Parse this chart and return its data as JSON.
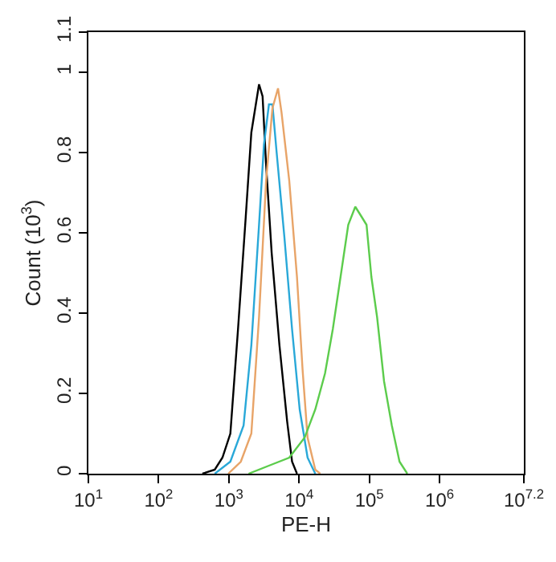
{
  "chart_data": {
    "type": "line",
    "xlabel": "PE-H",
    "ylabel": "Count (10$^{3}$)",
    "log": "x",
    "marker": "none",
    "line_style": "solid",
    "xlim": [
      10,
      15848932
    ],
    "ylim": [
      0,
      1.1
    ],
    "xticks": [
      {
        "value": 10,
        "label": "10$^{1}$"
      },
      {
        "value": 100,
        "label": "10$^{2}$"
      },
      {
        "value": 1000,
        "label": "10$^{3}$"
      },
      {
        "value": 10000,
        "label": "10$^{4}$"
      },
      {
        "value": 100000,
        "label": "10$^{5}$"
      },
      {
        "value": 1000000,
        "label": "10$^{6}$"
      },
      {
        "value": 15848932,
        "label": "10$^{7.2}$"
      }
    ],
    "yticks": [
      0,
      0.2,
      0.4,
      0.6,
      0.8,
      1,
      1.1
    ],
    "series": [
      {
        "color": "#000000",
        "x": [
          420,
          630,
          810,
          1050,
          1350,
          1740,
          2090,
          2690,
          3020,
          3390,
          4070,
          5250,
          6760,
          7940,
          9330
        ],
        "values": [
          0,
          0.01,
          0.04,
          0.1,
          0.36,
          0.64,
          0.85,
          0.97,
          0.94,
          0.77,
          0.55,
          0.32,
          0.13,
          0.03,
          0
        ]
      },
      {
        "color": "#29a8d8",
        "x": [
          630,
          1050,
          1620,
          2090,
          2690,
          3160,
          3720,
          4170,
          4790,
          6170,
          7940,
          10200,
          13200,
          17000
        ],
        "values": [
          0,
          0.03,
          0.12,
          0.32,
          0.62,
          0.82,
          0.92,
          0.92,
          0.8,
          0.59,
          0.36,
          0.16,
          0.04,
          0
        ]
      },
      {
        "color": "#e8a468",
        "x": [
          980,
          1480,
          2090,
          2690,
          3390,
          4170,
          5010,
          5620,
          7240,
          9330,
          11200,
          13200,
          17000,
          20000
        ],
        "values": [
          0,
          0.03,
          0.1,
          0.39,
          0.73,
          0.91,
          0.96,
          0.9,
          0.73,
          0.49,
          0.26,
          0.09,
          0.01,
          0
        ]
      },
      {
        "color": "#5ccc4c",
        "x": [
          1910,
          3720,
          7240,
          12000,
          17000,
          23400,
          30200,
          38900,
          50100,
          63100,
          77600,
          91200,
          107000,
          129000,
          162000,
          209000,
          269000,
          347000
        ],
        "values": [
          0,
          0.02,
          0.04,
          0.09,
          0.16,
          0.25,
          0.36,
          0.49,
          0.62,
          0.665,
          0.64,
          0.62,
          0.49,
          0.39,
          0.23,
          0.12,
          0.03,
          0
        ]
      }
    ]
  }
}
